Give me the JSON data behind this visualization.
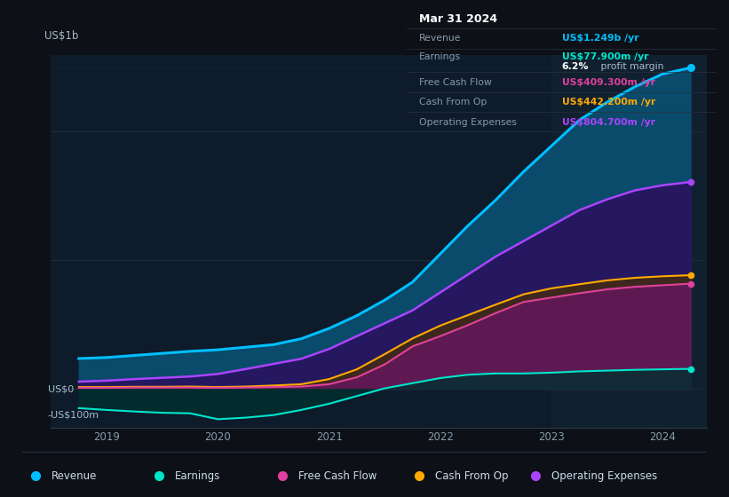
{
  "bg_color": "#0d1117",
  "chart_bg": "#0d1b2a",
  "grid_color": "#2a3a4a",
  "title_label": "US$1b",
  "zero_label": "US$0",
  "neg_label": "-US$100m",
  "x_ticks": [
    2019,
    2020,
    2021,
    2022,
    2023,
    2024
  ],
  "ylim": [
    -150,
    1300
  ],
  "xlim": [
    2018.5,
    2024.4
  ],
  "years": [
    2018.75,
    2019.0,
    2019.25,
    2019.5,
    2019.75,
    2020.0,
    2020.25,
    2020.5,
    2020.75,
    2021.0,
    2021.25,
    2021.5,
    2021.75,
    2022.0,
    2022.25,
    2022.5,
    2022.75,
    2023.0,
    2023.25,
    2023.5,
    2023.75,
    2024.0,
    2024.25
  ],
  "revenue": [
    118,
    122,
    130,
    138,
    146,
    152,
    162,
    172,
    195,
    235,
    285,
    345,
    415,
    525,
    635,
    735,
    845,
    945,
    1045,
    1115,
    1175,
    1225,
    1249
  ],
  "earnings": [
    -75,
    -82,
    -88,
    -93,
    -95,
    -118,
    -112,
    -102,
    -82,
    -58,
    -28,
    2,
    22,
    42,
    55,
    60,
    60,
    63,
    68,
    71,
    74,
    76,
    77.9
  ],
  "free_cash_flow": [
    4,
    4,
    5,
    5,
    5,
    4,
    5,
    7,
    9,
    18,
    45,
    95,
    165,
    205,
    248,
    295,
    338,
    355,
    372,
    387,
    397,
    403,
    409.3
  ],
  "cash_from_op": [
    7,
    7,
    8,
    8,
    9,
    7,
    9,
    13,
    18,
    38,
    76,
    135,
    196,
    246,
    287,
    328,
    368,
    391,
    407,
    422,
    432,
    438,
    442.2
  ],
  "operating_expenses": [
    28,
    32,
    38,
    43,
    48,
    58,
    77,
    97,
    117,
    155,
    205,
    255,
    305,
    375,
    445,
    515,
    575,
    635,
    695,
    737,
    772,
    792,
    804.7
  ],
  "revenue_color": "#00bfff",
  "revenue_fill_color": "#0a4a6a",
  "earnings_color": "#00e5cc",
  "earnings_fill_color": "#003030",
  "free_cash_flow_color": "#e040a0",
  "free_cash_flow_fill": "#6a1a50",
  "cash_from_op_color": "#ffaa00",
  "cash_from_op_fill": "#4a3000",
  "operating_expenses_color": "#aa44ff",
  "operating_expenses_fill": "#2a1060",
  "info_box_bg": "#0a0c10",
  "info_box_border": "#2a3040",
  "info_label_color": "#8899aa",
  "info_white": "#ffffff",
  "info_box": {
    "date": "Mar 31 2024",
    "revenue_label": "Revenue",
    "revenue_value": "US$1.249b /yr",
    "earnings_label": "Earnings",
    "earnings_value": "US$77.900m /yr",
    "margin_value": "6.2%",
    "margin_text": " profit margin",
    "fcf_label": "Free Cash Flow",
    "fcf_value": "US$409.300m /yr",
    "cop_label": "Cash From Op",
    "cop_value": "US$442.200m /yr",
    "opex_label": "Operating Expenses",
    "opex_value": "US$804.700m /yr"
  },
  "legend_items": [
    {
      "label": "Revenue",
      "color": "#00bfff"
    },
    {
      "label": "Earnings",
      "color": "#00e5cc"
    },
    {
      "label": "Free Cash Flow",
      "color": "#e040a0"
    },
    {
      "label": "Cash From Op",
      "color": "#ffaa00"
    },
    {
      "label": "Operating Expenses",
      "color": "#aa44ff"
    }
  ]
}
